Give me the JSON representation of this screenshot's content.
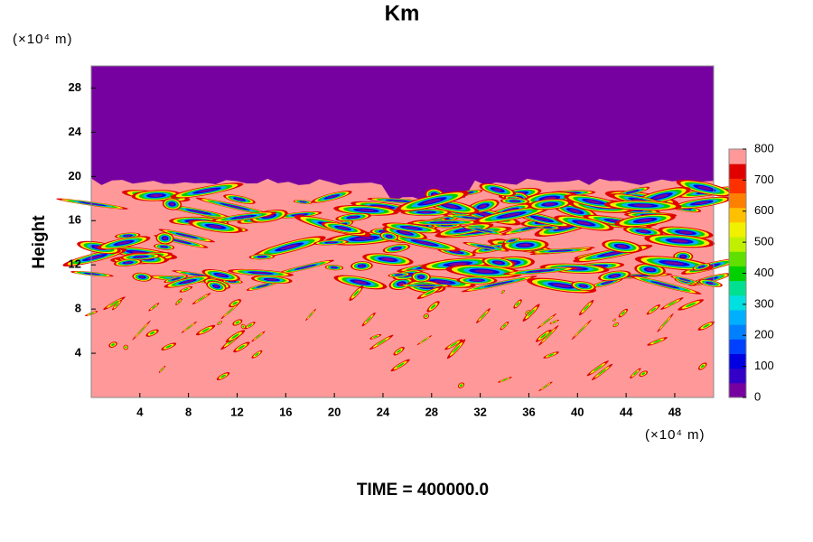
{
  "chart_data": {
    "type": "contour",
    "title": "Km",
    "ylabel": "Height",
    "x_unit": "(×10⁴ m)",
    "y_unit": "(×10⁴ m)",
    "footer": "TIME = 400000.0",
    "xlim": [
      0,
      51.2
    ],
    "ylim": [
      0,
      30
    ],
    "xticks": [
      4,
      8,
      12,
      16,
      20,
      24,
      28,
      32,
      36,
      40,
      44,
      48
    ],
    "yticks": [
      4,
      8,
      12,
      16,
      20,
      24,
      28
    ],
    "colorbar": {
      "lim": [
        0,
        800
      ],
      "ticks": [
        0,
        100,
        200,
        300,
        400,
        500,
        600,
        700,
        800
      ],
      "colors": [
        "#7700a0",
        "#3300c8",
        "#0000e0",
        "#0040ff",
        "#0080ff",
        "#00b0ff",
        "#00e0e0",
        "#00e090",
        "#00d000",
        "#60e000",
        "#c0f000",
        "#f0f000",
        "#ffc000",
        "#ff8000",
        "#ff3000",
        "#e00000",
        "#ff9999"
      ]
    }
  }
}
